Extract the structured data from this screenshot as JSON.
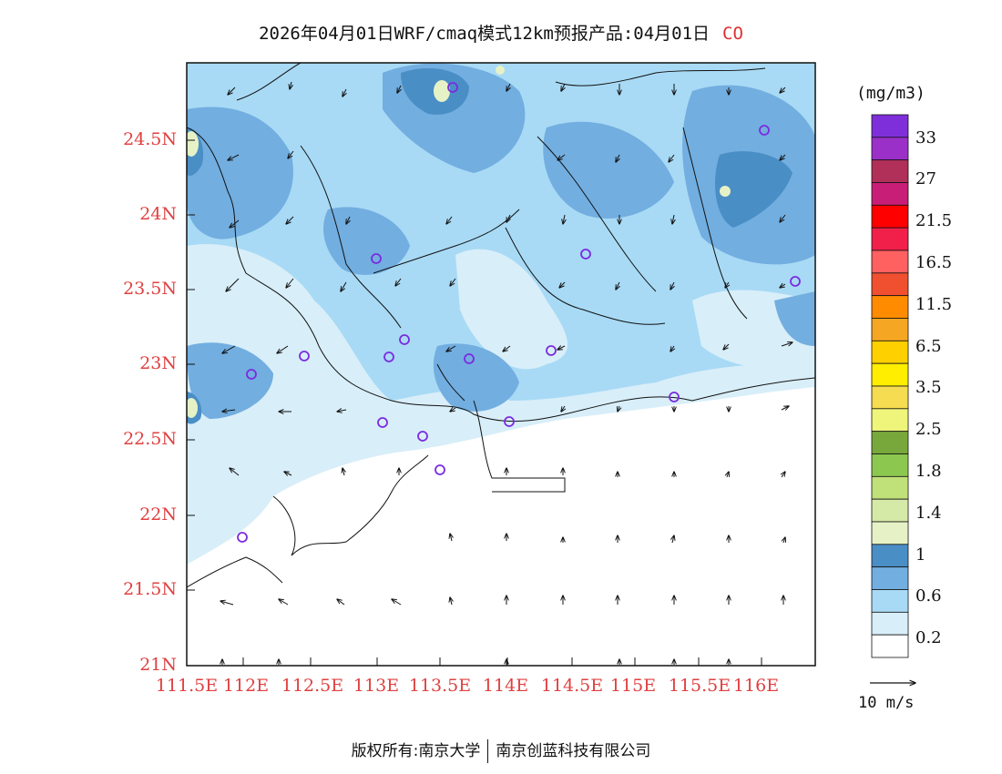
{
  "header": {
    "title": "2026年04月01日WRF/cmaq模式12km预报产品:04月01日",
    "species": "CO"
  },
  "axes": {
    "lat_labels": [
      "24.5N",
      "24N",
      "23.5N",
      "23N",
      "22.5N",
      "22N",
      "21.5N",
      "21N"
    ],
    "lon_labels": [
      "111.5E",
      "112E",
      "112.5E",
      "113E",
      "113.5E",
      "114E",
      "114.5E",
      "115E",
      "115.5E",
      "116E"
    ]
  },
  "legend": {
    "unit": "(mg/m3)",
    "labels": [
      "33",
      "27",
      "21.5",
      "16.5",
      "11.5",
      "6.5",
      "3.5",
      "2.5",
      "1.8",
      "1.4",
      "1",
      "0.6",
      "0.2"
    ],
    "colors": [
      "#7f2fd9",
      "#9b30c9",
      "#b0305a",
      "#c81e78",
      "#ff0000",
      "#f0204a",
      "#ff6060",
      "#f05030",
      "#ff8c00",
      "#f5a623",
      "#ffd000",
      "#ffee00",
      "#f5dc50",
      "#eef57a",
      "#78a83c",
      "#8cc850",
      "#c0e07a",
      "#d6eaa8",
      "#e6f2c6",
      "#4a8ec6",
      "#72aee0",
      "#a8daf5",
      "#d8eef9",
      "#ffffff"
    ],
    "reference_vector": "10 m/s"
  },
  "footer": {
    "left": "版权所有:南京大学",
    "right": "南京创蓝科技有限公司"
  }
}
